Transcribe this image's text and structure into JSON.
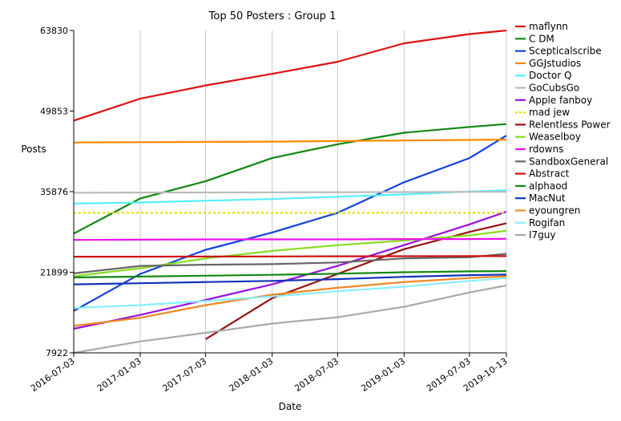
{
  "chart_data": {
    "type": "line",
    "title": "Top 50 Posters : Group 1",
    "xlabel": "Date",
    "ylabel": "Posts",
    "x": [
      "2016-07-03",
      "2017-01-03",
      "2017-07-03",
      "2018-01-03",
      "2018-07-03",
      "2019-01-03",
      "2019-07-03",
      "2019-10-13"
    ],
    "x_tick_labels": [
      "2016-07-03",
      "2017-01-03",
      "2017-07-03",
      "2018-01-03",
      "2018-07-03",
      "2019-01-03",
      "2019-07-03",
      "2019-10-13"
    ],
    "y_ticks": [
      7922,
      21899,
      35876,
      49853,
      63830
    ],
    "ylim": [
      7922,
      63830
    ],
    "grid": "vertical",
    "legend_position": "right",
    "series": [
      {
        "name": "maflynn",
        "color": "#dd1111",
        "dash": false,
        "values": [
          48200,
          52000,
          54300,
          56300,
          58400,
          61600,
          63200,
          63830
        ]
      },
      {
        "name": "C DM",
        "color": "#118811",
        "dash": false,
        "values": [
          28600,
          34700,
          37700,
          41700,
          44100,
          46100,
          47100,
          47600
        ]
      },
      {
        "name": "Scepticalscribe",
        "color": "#1144dd",
        "dash": false,
        "values": [
          15200,
          21600,
          25800,
          28800,
          32200,
          37500,
          41700,
          45600
        ]
      },
      {
        "name": "GGJstudios",
        "color": "#ff8800",
        "dash": false,
        "values": [
          44400,
          44450,
          44500,
          44550,
          44650,
          44750,
          44850,
          44900
        ]
      },
      {
        "name": "Doctor Q",
        "color": "#55eeff",
        "dash": false,
        "values": [
          33800,
          34000,
          34300,
          34600,
          35000,
          35400,
          35900,
          36100
        ]
      },
      {
        "name": "GoCubsGo",
        "color": "#bbbbbb",
        "dash": false,
        "values": [
          35700,
          35720,
          35740,
          35760,
          35780,
          35800,
          35830,
          35850
        ]
      },
      {
        "name": "Apple fanboy",
        "color": "#9911dd",
        "dash": false,
        "values": [
          12100,
          14500,
          17100,
          19800,
          23000,
          26600,
          30200,
          32400
        ]
      },
      {
        "name": "mad jew",
        "color": "#eedd00",
        "dash": true,
        "values": [
          32200,
          32200,
          32200,
          32200,
          32200,
          32200,
          32200,
          32200
        ]
      },
      {
        "name": "Relentless Power",
        "color": "#991111",
        "dash": false,
        "values": [
          null,
          null,
          10300,
          17400,
          21600,
          25900,
          28900,
          30400
        ]
      },
      {
        "name": "Weaselboy",
        "color": "#88dd22",
        "dash": false,
        "values": [
          21200,
          22600,
          24300,
          25600,
          26600,
          27400,
          28300,
          29100
        ]
      },
      {
        "name": "rdowns",
        "color": "#ee11ee",
        "dash": false,
        "values": [
          27500,
          27550,
          27600,
          27600,
          27600,
          27650,
          27650,
          27700
        ]
      },
      {
        "name": "SandboxGeneral",
        "color": "#666666",
        "dash": false,
        "values": [
          21700,
          23000,
          23200,
          23300,
          23600,
          24300,
          24500,
          25100
        ]
      },
      {
        "name": "Abstract",
        "color": "#cc1111",
        "dash": false,
        "values": [
          24600,
          24600,
          24620,
          24640,
          24660,
          24680,
          24700,
          24700
        ]
      },
      {
        "name": "alphaod",
        "color": "#118811",
        "dash": false,
        "values": [
          21000,
          21150,
          21300,
          21450,
          21650,
          21900,
          22050,
          22100
        ]
      },
      {
        "name": "MacNut",
        "color": "#1133bb",
        "dash": false,
        "values": [
          19800,
          20000,
          20200,
          20400,
          20700,
          21100,
          21400,
          21500
        ]
      },
      {
        "name": "eyoungren",
        "color": "#ee8822",
        "dash": false,
        "values": [
          12600,
          14000,
          16200,
          18000,
          19200,
          20200,
          20900,
          21200
        ]
      },
      {
        "name": "Rogifan",
        "color": "#88eeff",
        "dash": false,
        "values": [
          15700,
          16200,
          16900,
          17700,
          18600,
          19400,
          20400,
          20900
        ]
      },
      {
        "name": "I7guy",
        "color": "#aaaaaa",
        "dash": false,
        "values": [
          7922,
          9900,
          11400,
          13000,
          14100,
          15900,
          18400,
          19600
        ]
      }
    ]
  }
}
